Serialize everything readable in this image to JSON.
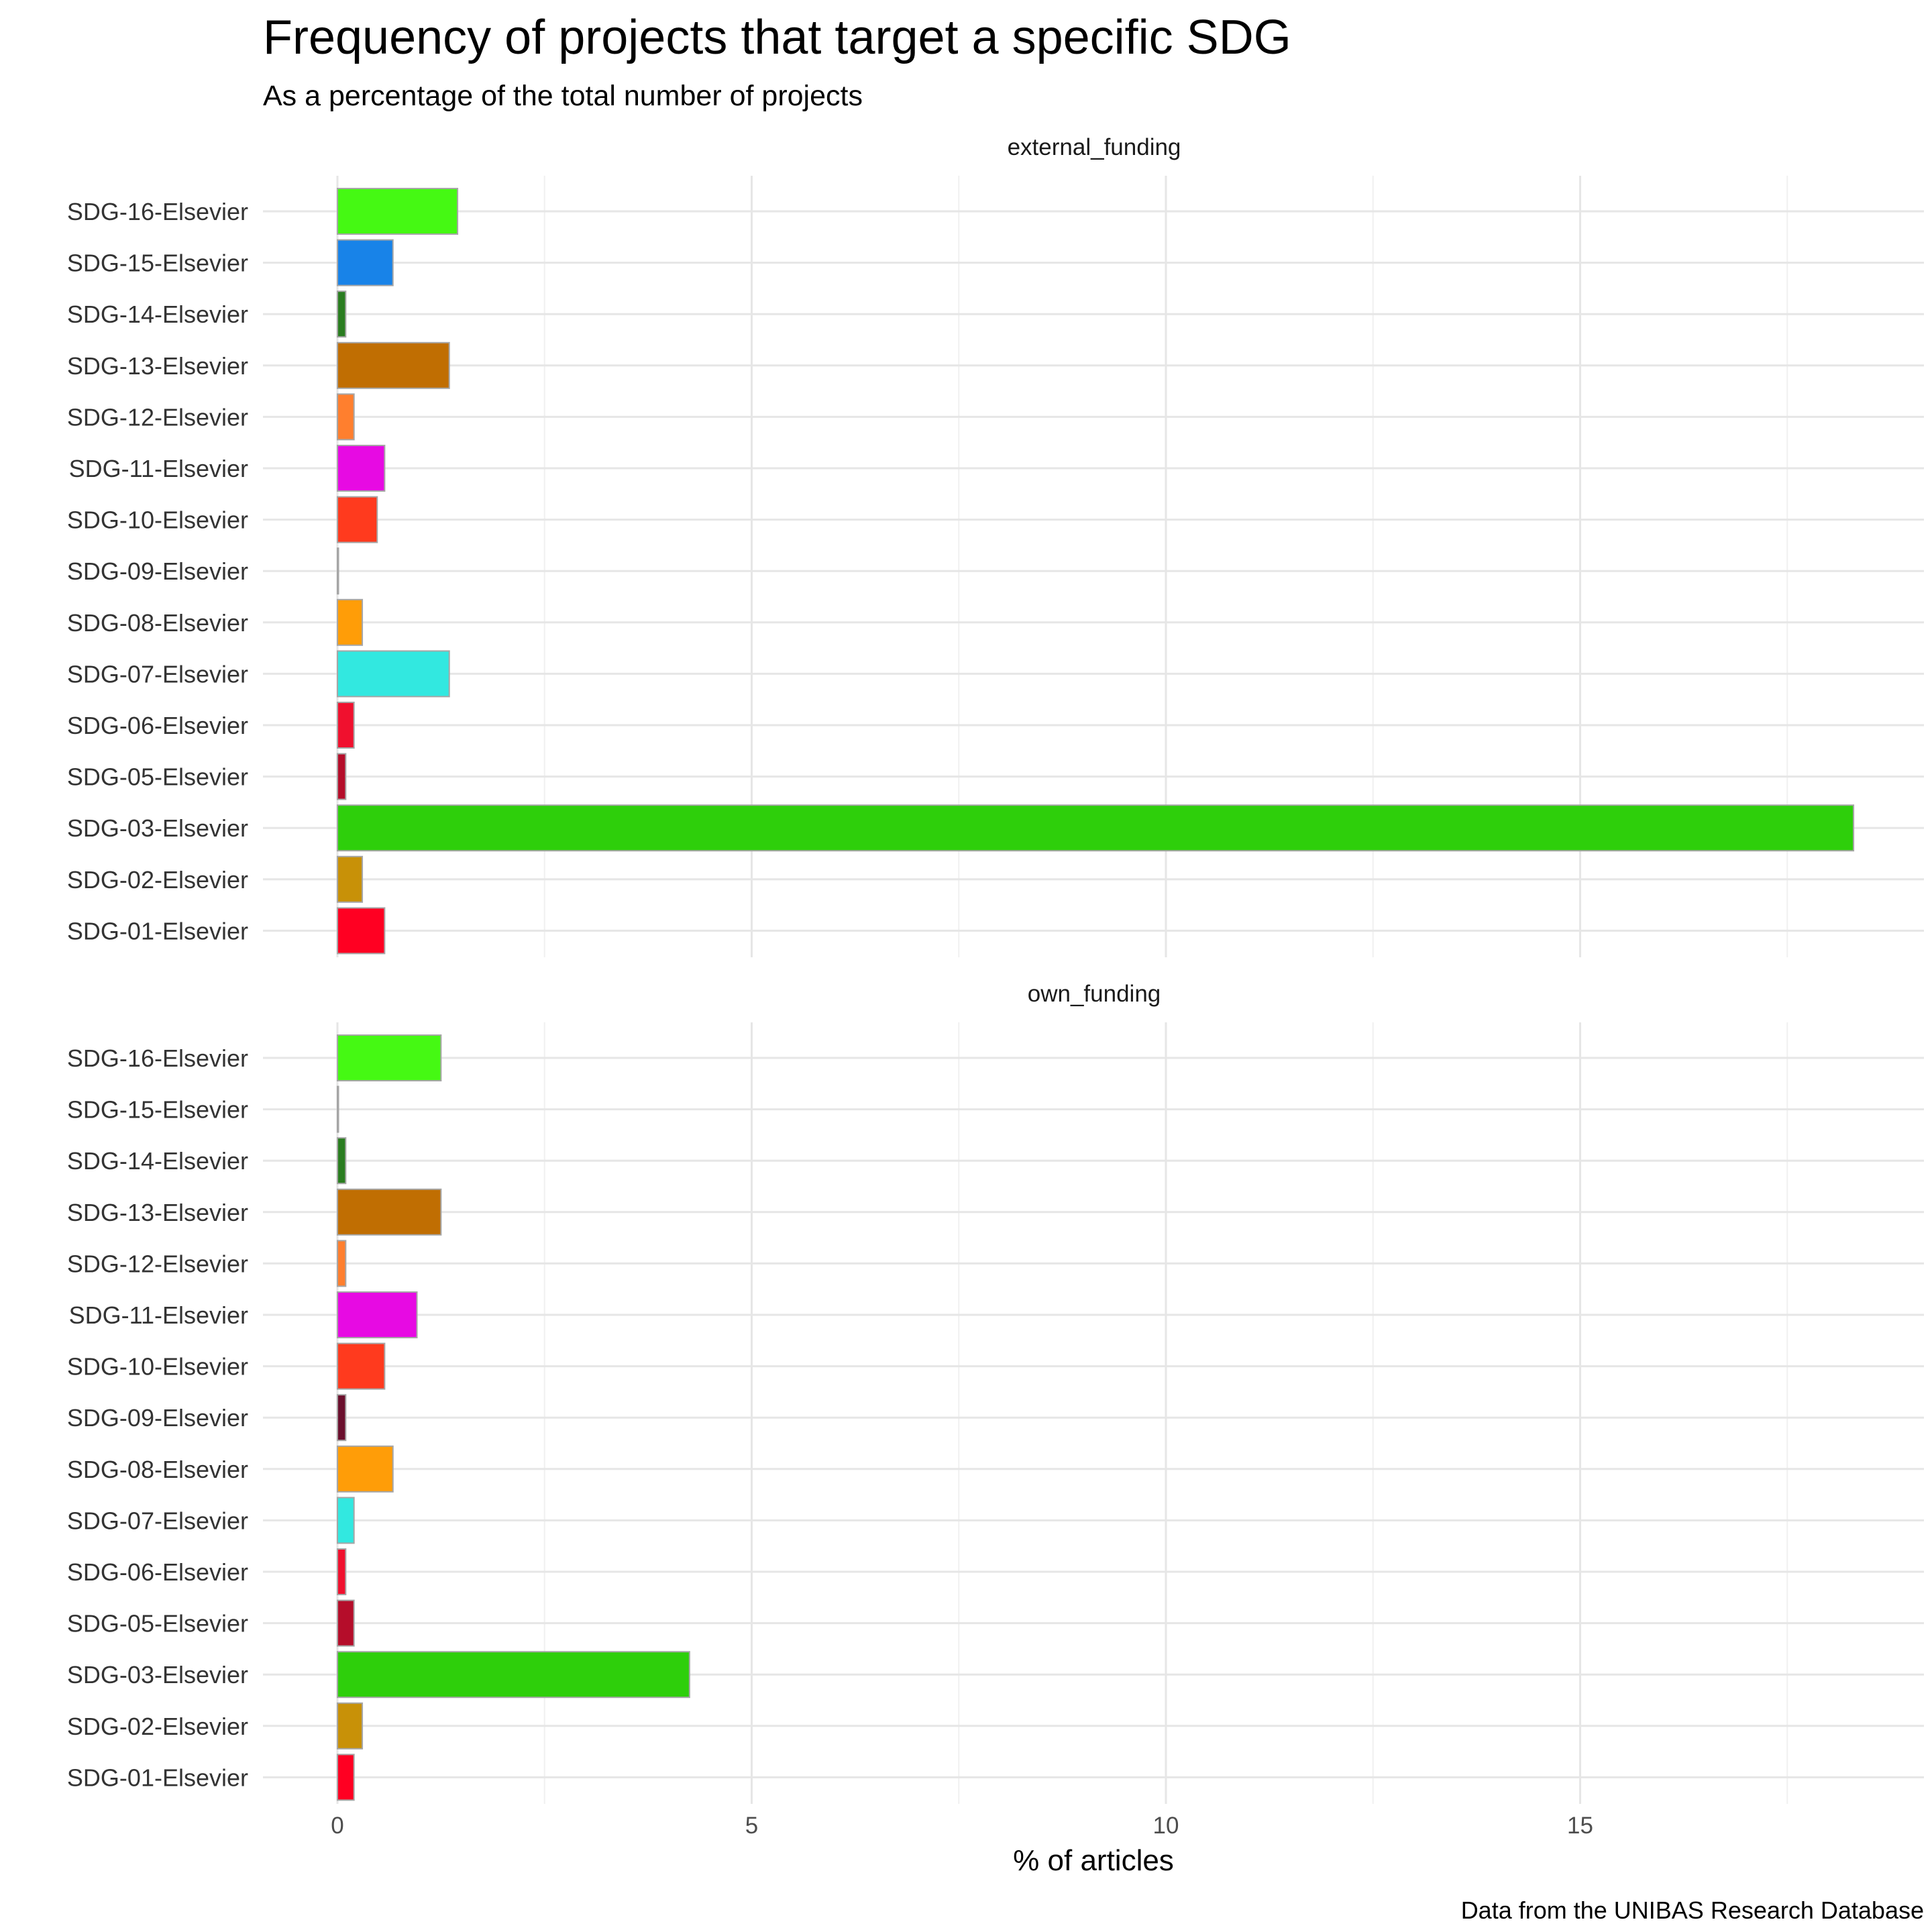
{
  "chart_data": {
    "type": "bar",
    "orientation": "horizontal",
    "title": "Frequency of projects that target a specific SDG",
    "subtitle": "As a percentage of the total number of projects",
    "xlabel": "% of articles",
    "ylabel": "",
    "caption": "Data from the UNIBAS Research Database",
    "xlim": [
      0,
      18.3
    ],
    "xticks": [
      0,
      5,
      10,
      15
    ],
    "grid": true,
    "legend": "none",
    "categories": [
      "SDG-01-Elsevier",
      "SDG-02-Elsevier",
      "SDG-03-Elsevier",
      "SDG-05-Elsevier",
      "SDG-06-Elsevier",
      "SDG-07-Elsevier",
      "SDG-08-Elsevier",
      "SDG-09-Elsevier",
      "SDG-10-Elsevier",
      "SDG-11-Elsevier",
      "SDG-12-Elsevier",
      "SDG-13-Elsevier",
      "SDG-14-Elsevier",
      "SDG-15-Elsevier",
      "SDG-16-Elsevier"
    ],
    "colors": [
      "#ff0022",
      "#c89108",
      "#2ecf0b",
      "#b50d2a",
      "#f0102e",
      "#32e8e0",
      "#ff9d08",
      "#6b0f2d",
      "#ff3a1e",
      "#e70ae3",
      "#ff7f2e",
      "#c06e02",
      "#2a7d20",
      "#1883e8",
      "#45f913"
    ],
    "facets": [
      {
        "name": "external_funding",
        "values": [
          0.57,
          0.3,
          18.3,
          0.1,
          0.2,
          1.35,
          0.3,
          0.0,
          0.48,
          0.57,
          0.2,
          1.35,
          0.1,
          0.67,
          1.45
        ]
      },
      {
        "name": "own_funding",
        "values": [
          0.2,
          0.3,
          4.25,
          0.2,
          0.1,
          0.2,
          0.67,
          0.1,
          0.57,
          0.96,
          0.1,
          1.25,
          0.1,
          0.0,
          1.25
        ]
      }
    ]
  }
}
